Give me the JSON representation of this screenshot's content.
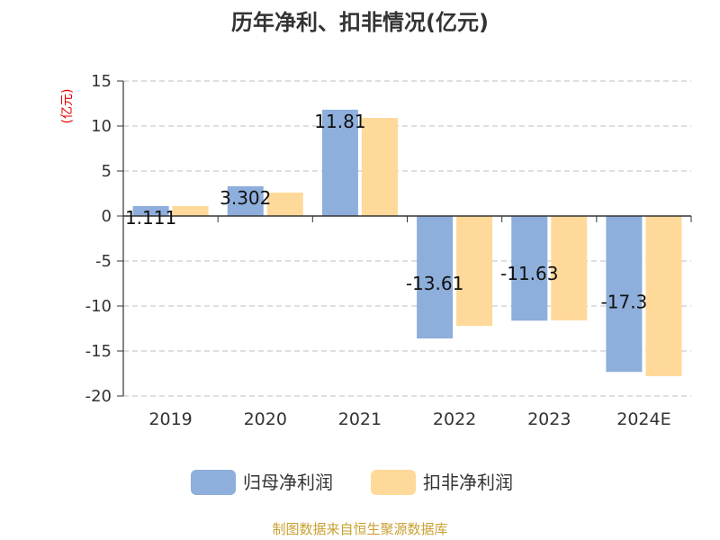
{
  "chart_data": {
    "type": "bar",
    "title": "历年净利、扣非情况(亿元)",
    "unit": "(亿元)",
    "categories": [
      "2019",
      "2020",
      "2021",
      "2022",
      "2023",
      "2024E"
    ],
    "series": [
      {
        "name": "归母净利润",
        "color": "#8eaedb",
        "values": [
          1.111,
          3.302,
          11.81,
          -13.61,
          -11.63,
          -17.32
        ],
        "labels": [
          "1.111",
          "3.302",
          "11.81",
          "-13.61",
          "-11.63",
          "-17.3"
        ]
      },
      {
        "name": "扣非净利润",
        "color": "#ffd999",
        "values": [
          1.1,
          2.6,
          10.9,
          -12.2,
          -11.6,
          -17.8
        ]
      }
    ],
    "yticks": [
      15,
      10,
      5,
      0,
      -5,
      -10,
      -15,
      -20
    ],
    "ylim": [
      -20,
      15
    ],
    "grid": true,
    "legend": "bottom"
  },
  "footer": {
    "source": "制图数据来自恒生聚源数据库"
  }
}
